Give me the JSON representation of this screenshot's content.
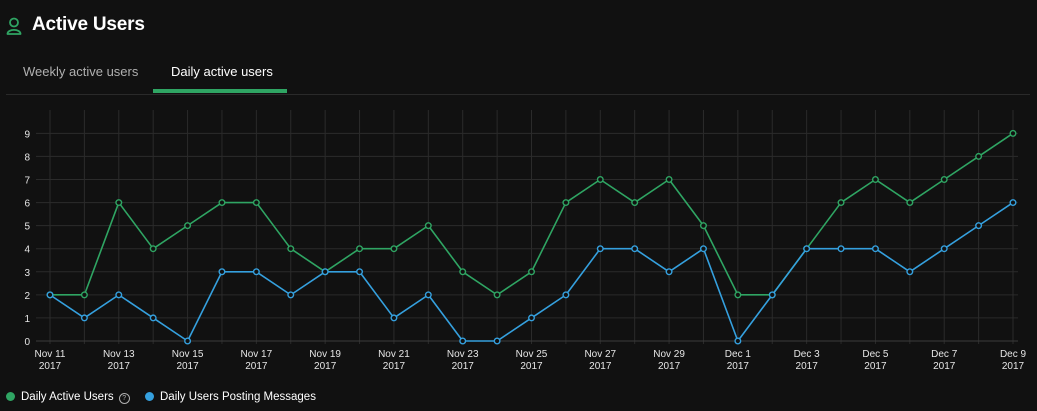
{
  "header": {
    "title": "Active Users",
    "icon": "user-icon",
    "accent": "#2fa563"
  },
  "tabs": [
    {
      "label": "Weekly active users",
      "active": false
    },
    {
      "label": "Daily active users",
      "active": true
    }
  ],
  "chart_data": {
    "type": "line",
    "x": [
      "Nov 11 2017",
      "Nov 12 2017",
      "Nov 13 2017",
      "Nov 14 2017",
      "Nov 15 2017",
      "Nov 16 2017",
      "Nov 17 2017",
      "Nov 18 2017",
      "Nov 19 2017",
      "Nov 20 2017",
      "Nov 21 2017",
      "Nov 22 2017",
      "Nov 23 2017",
      "Nov 24 2017",
      "Nov 25 2017",
      "Nov 26 2017",
      "Nov 27 2017",
      "Nov 28 2017",
      "Nov 29 2017",
      "Nov 30 2017",
      "Dec 1 2017",
      "Dec 2 2017",
      "Dec 3 2017",
      "Dec 4 2017",
      "Dec 5 2017",
      "Dec 6 2017",
      "Dec 7 2017",
      "Dec 8 2017",
      "Dec 9 2017"
    ],
    "x_tick_labels": [
      {
        "month_day": "Nov 11",
        "year": "2017"
      },
      {
        "month_day": "Nov 13",
        "year": "2017"
      },
      {
        "month_day": "Nov 15",
        "year": "2017"
      },
      {
        "month_day": "Nov 17",
        "year": "2017"
      },
      {
        "month_day": "Nov 19",
        "year": "2017"
      },
      {
        "month_day": "Nov 21",
        "year": "2017"
      },
      {
        "month_day": "Nov 23",
        "year": "2017"
      },
      {
        "month_day": "Nov 25",
        "year": "2017"
      },
      {
        "month_day": "Nov 27",
        "year": "2017"
      },
      {
        "month_day": "Nov 29",
        "year": "2017"
      },
      {
        "month_day": "Dec 1",
        "year": "2017"
      },
      {
        "month_day": "Dec 3",
        "year": "2017"
      },
      {
        "month_day": "Dec 5",
        "year": "2017"
      },
      {
        "month_day": "Dec 7",
        "year": "2017"
      },
      {
        "month_day": "Dec 9",
        "year": "2017"
      }
    ],
    "y_ticks": [
      "0",
      "1",
      "2",
      "3",
      "4",
      "5",
      "6",
      "7",
      "8",
      "9"
    ],
    "ylim": [
      0,
      9.6
    ],
    "grid": true,
    "legend_position": "bottom-left",
    "series": [
      {
        "name": "Daily Active Users",
        "color": "#2fa563",
        "values": [
          2,
          2,
          6,
          4,
          5,
          6,
          6,
          4,
          3,
          4,
          4,
          5,
          3,
          2,
          3,
          6,
          7,
          6,
          7,
          5,
          2,
          2,
          4,
          6,
          7,
          6,
          7,
          8,
          9
        ]
      },
      {
        "name": "Daily Users Posting Messages",
        "color": "#35a0de",
        "values": [
          2,
          1,
          2,
          1,
          0,
          3,
          3,
          2,
          3,
          3,
          1,
          2,
          0,
          0,
          1,
          2,
          4,
          4,
          3,
          4,
          0,
          2,
          4,
          4,
          4,
          3,
          4,
          5,
          6
        ]
      }
    ]
  }
}
